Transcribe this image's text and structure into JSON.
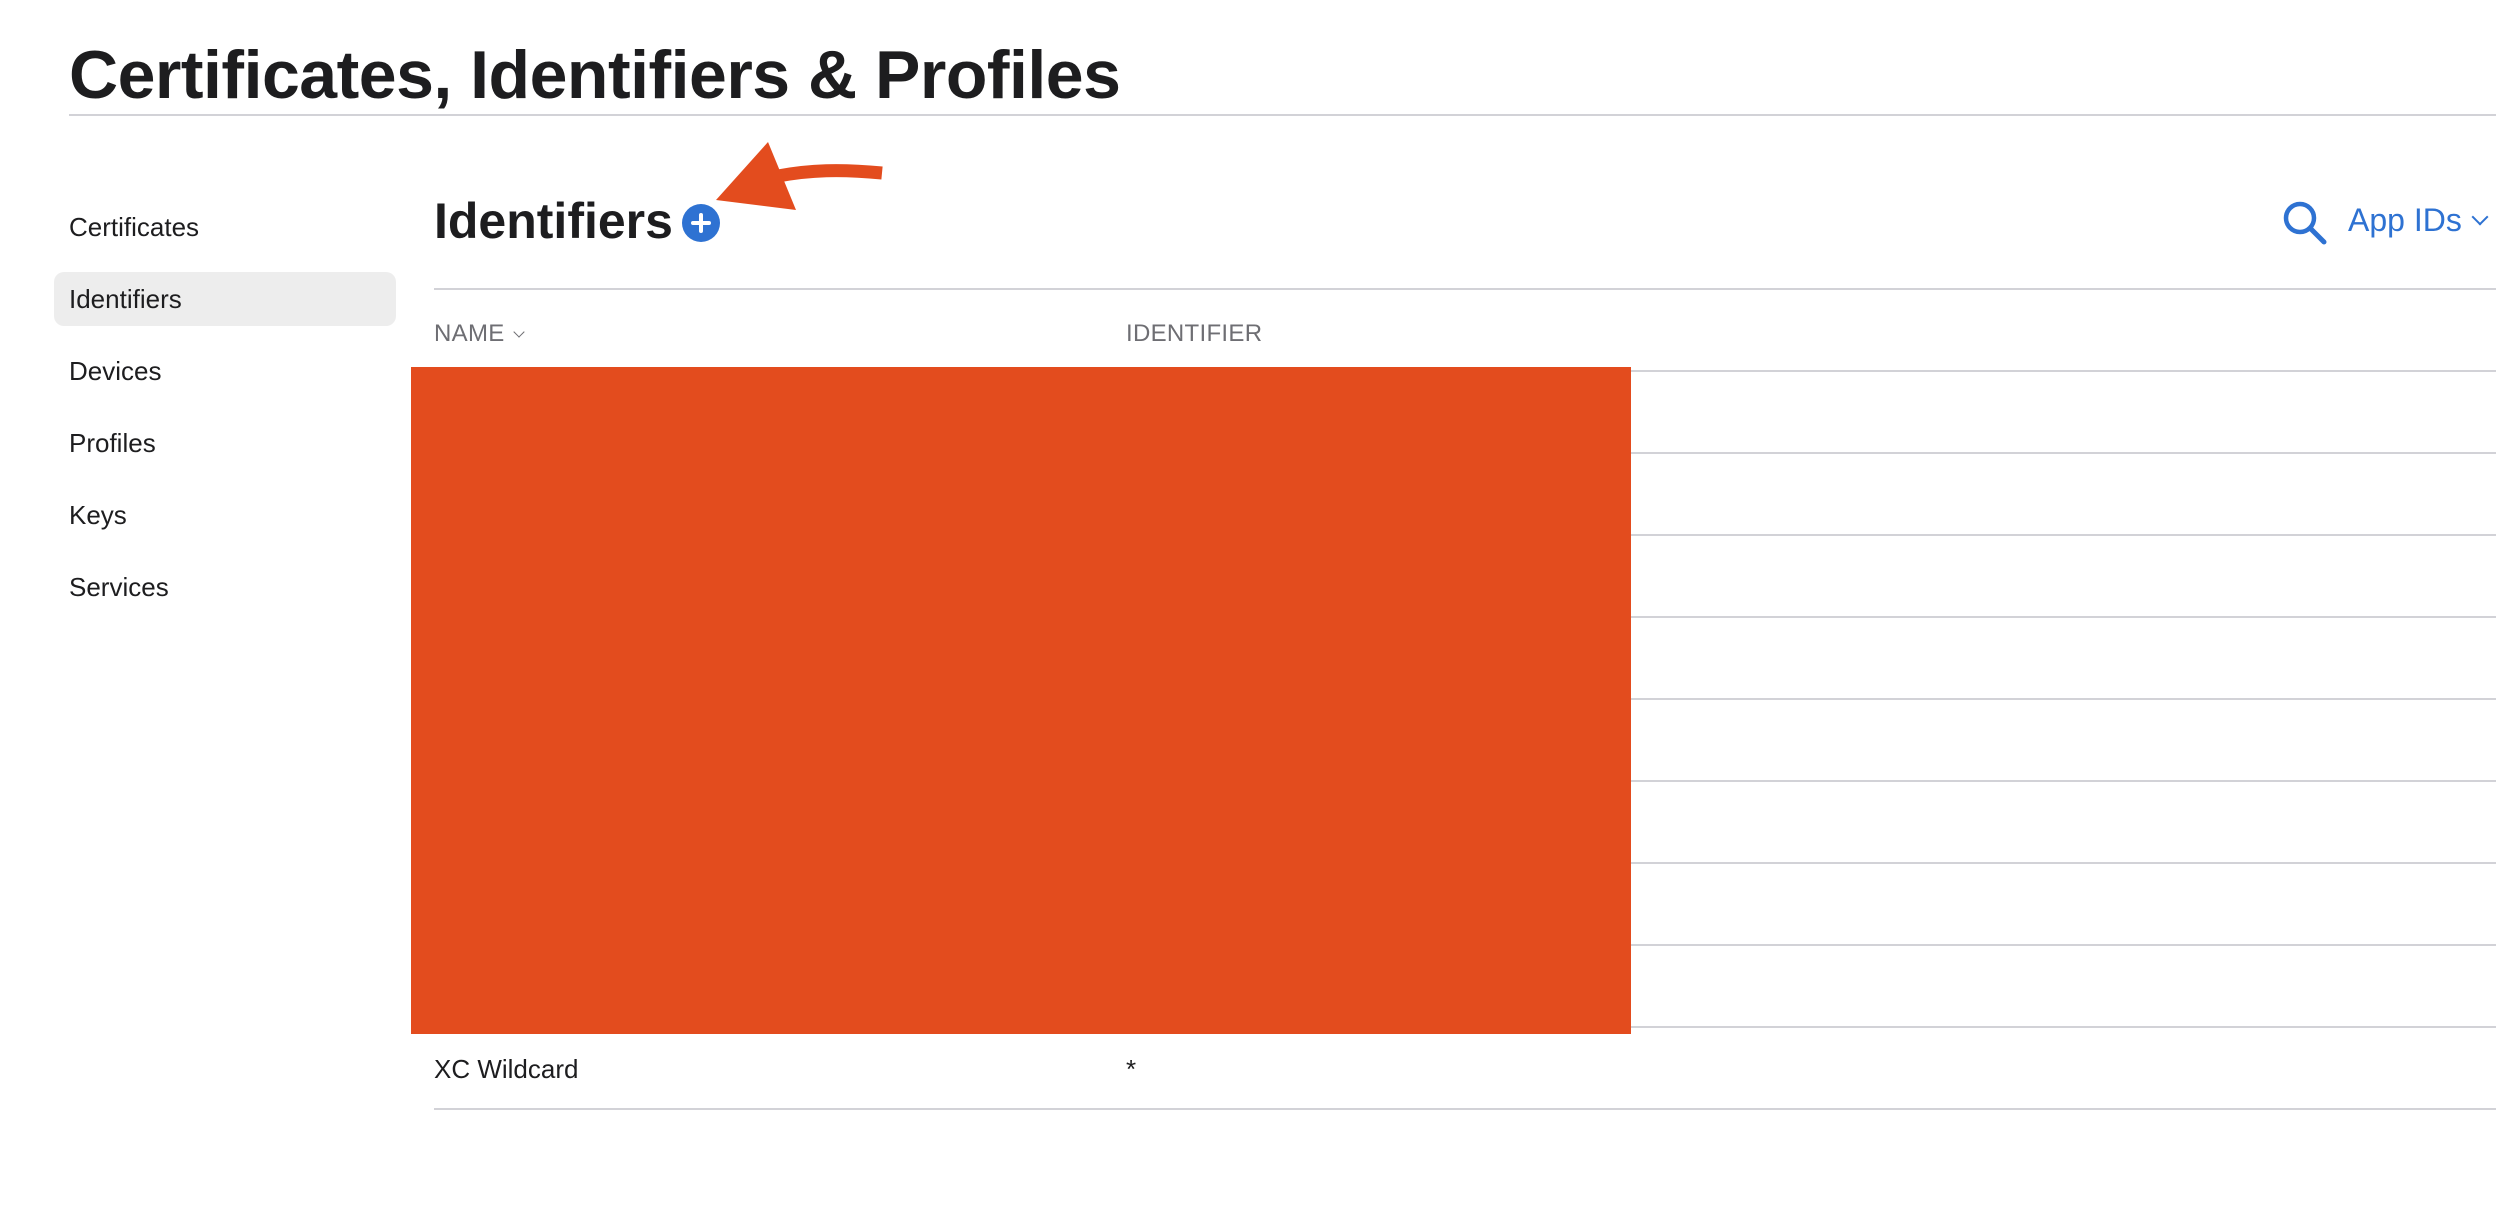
{
  "page": {
    "title": "Certificates, Identifiers & Profiles"
  },
  "sidebar": {
    "items": [
      {
        "label": "Certificates"
      },
      {
        "label": "Identifiers"
      },
      {
        "label": "Devices"
      },
      {
        "label": "Profiles"
      },
      {
        "label": "Keys"
      },
      {
        "label": "Services"
      }
    ],
    "active_item": "Identifiers"
  },
  "section": {
    "title": "Identifiers",
    "add_icon": "plus-circle-icon",
    "search_icon": "search-icon",
    "filter_value": "App IDs",
    "filter_chevron_icon": "chevron-down-icon"
  },
  "table": {
    "columns": [
      "NAME",
      "IDENTIFIER"
    ],
    "sort_icon": "chevron-down-icon",
    "rows": [
      {
        "name": "XC Wildcard",
        "identifier": "*"
      }
    ]
  },
  "annotation": {
    "redaction_color": "#e34c1e",
    "arrow_color": "#e34c1e",
    "arrow_icon": "arrow-left-icon"
  },
  "colors": {
    "accent": "#2e72d2",
    "text": "#1d1d1f",
    "muted": "#6e6e73",
    "divider": "#d2d2d7",
    "active_bg": "#ededed"
  }
}
